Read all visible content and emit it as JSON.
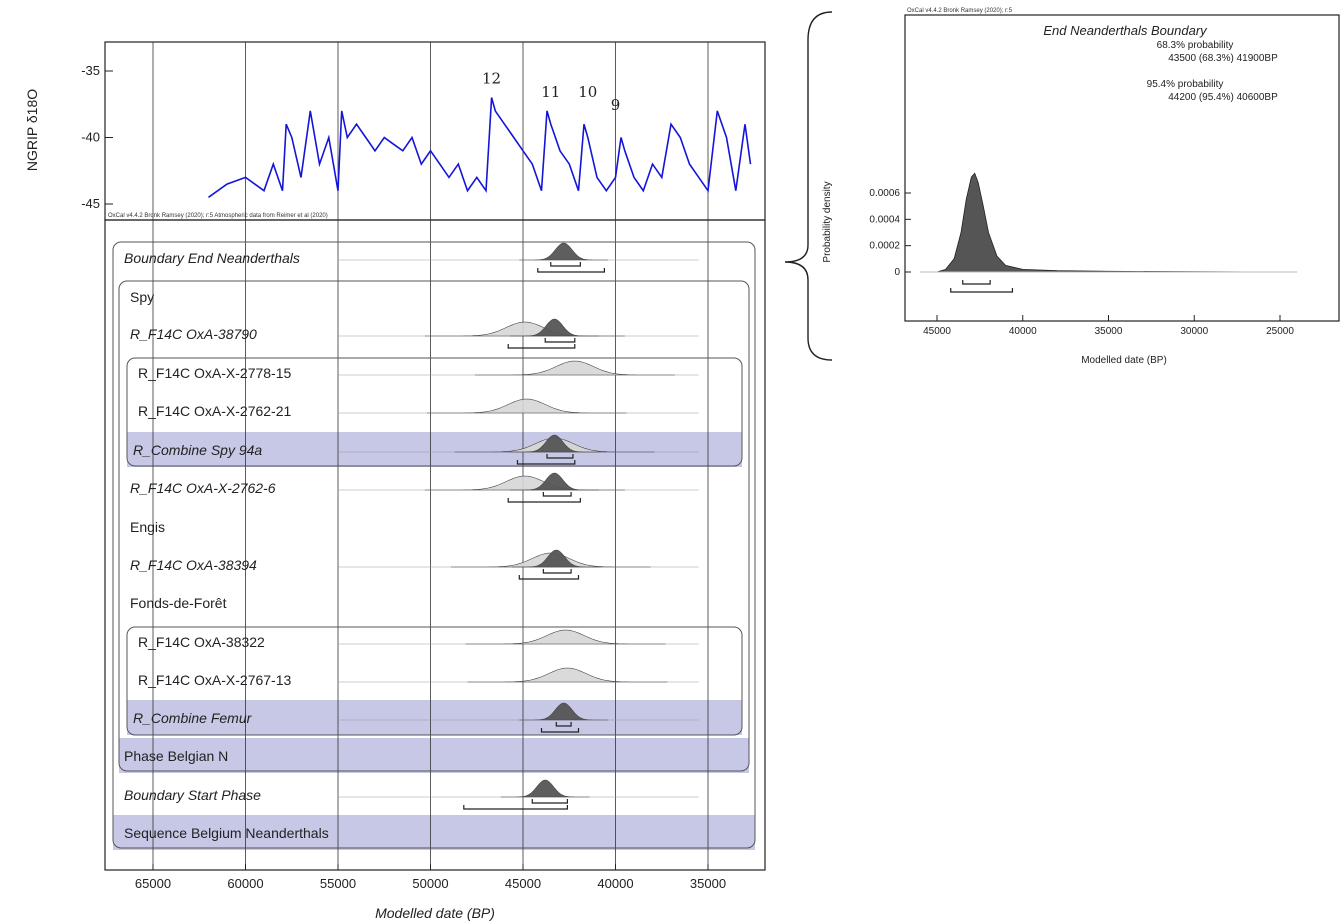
{
  "main_chart": {
    "y_axis_label": "NGRIP δ18O",
    "x_axis_label": "Modelled date (BP)",
    "credit": "OxCal v4.4.2 Bronk Ramsey (2020); r:5 Atmospheric data from Reimer et al (2020)",
    "x_ticks": [
      "65000",
      "60000",
      "55000",
      "50000",
      "45000",
      "40000",
      "35000"
    ],
    "y_ticks": [
      "-35",
      "-40",
      "-45"
    ],
    "peak_labels": [
      "12",
      "11",
      "10",
      "9"
    ]
  },
  "rows": [
    {
      "label": "Boundary End Neanderthals",
      "italic": true,
      "shaded": false
    },
    {
      "label": "Spy",
      "italic": false,
      "shaded": false
    },
    {
      "label": "R_F14C OxA-38790",
      "italic": true,
      "shaded": false
    },
    {
      "label": "R_F14C OxA-X-2778-15",
      "italic": false,
      "shaded": false
    },
    {
      "label": "R_F14C OxA-X-2762-21",
      "italic": false,
      "shaded": false
    },
    {
      "label": "R_Combine Spy 94a",
      "italic": true,
      "shaded": true
    },
    {
      "label": "R_F14C OxA-X-2762-6",
      "italic": true,
      "shaded": false
    },
    {
      "label": "Engis",
      "italic": false,
      "shaded": false
    },
    {
      "label": "R_F14C OxA-38394",
      "italic": true,
      "shaded": false
    },
    {
      "label": "Fonds-de-Forêt",
      "italic": false,
      "shaded": false
    },
    {
      "label": "R_F14C OxA-38322",
      "italic": false,
      "shaded": false
    },
    {
      "label": "R_F14C OxA-X-2767-13",
      "italic": false,
      "shaded": false
    },
    {
      "label": "R_Combine Femur",
      "italic": true,
      "shaded": true
    },
    {
      "label": "Phase Belgian N",
      "italic": false,
      "shaded": true
    },
    {
      "label": "Boundary Start Phase",
      "italic": true,
      "shaded": false
    },
    {
      "label": "Sequence Belgium Neanderthals",
      "italic": false,
      "shaded": true
    }
  ],
  "inset": {
    "credit": "OxCal v4.4.2 Bronk Ramsey (2020); r:5",
    "title": "End Neanderthals Boundary",
    "lines": [
      "68.3% probability",
      "43500 (68.3%) 41900BP",
      "95.4% probability",
      "44200 (95.4%) 40600BP"
    ],
    "y_axis_label": "Probability density",
    "x_axis_label": "Modelled date (BP)",
    "y_ticks": [
      "0.0006",
      "0.0004",
      "0.0002",
      "0"
    ],
    "x_ticks": [
      "45000",
      "40000",
      "35000",
      "30000",
      "25000"
    ]
  },
  "chart_data": [
    {
      "type": "area",
      "title": "",
      "xlabel": "Modelled date (BP)",
      "ylabel": "NGRIP δ18O",
      "x_reversed": true,
      "xlim": [
        67500,
        32500
      ],
      "ylim": [
        -46,
        -34
      ],
      "grid": true,
      "series": [
        {
          "name": "NGRIP δ18O",
          "x": [
            62000,
            61000,
            60000,
            59000,
            58500,
            58000,
            57800,
            57500,
            57000,
            56500,
            56000,
            55500,
            55000,
            54800,
            54500,
            54000,
            53500,
            53000,
            52500,
            52000,
            51500,
            51000,
            50500,
            50000,
            49500,
            49000,
            48500,
            48000,
            47500,
            47000,
            46700,
            46500,
            46000,
            45500,
            45000,
            44500,
            44000,
            43700,
            43500,
            43000,
            42500,
            42000,
            41700,
            41500,
            41000,
            40500,
            40000,
            39700,
            39500,
            39000,
            38500,
            38000,
            37500,
            37000,
            36500,
            36000,
            35500,
            35000,
            34500,
            34000,
            33500,
            33000,
            32700
          ],
          "y": [
            -44.5,
            -43.5,
            -43,
            -44,
            -42,
            -44,
            -39,
            -40,
            -43,
            -38,
            -42,
            -40,
            -44,
            -38,
            -40,
            -39,
            -40,
            -41,
            -40,
            -40.5,
            -41,
            -40,
            -42,
            -41,
            -42,
            -43,
            -42,
            -44,
            -43,
            -44,
            -37,
            -38,
            -39,
            -40,
            -41,
            -42,
            -44,
            -38,
            -39,
            -41,
            -42,
            -44,
            -39,
            -40,
            -43,
            -44,
            -43,
            -40,
            -41,
            -43,
            -44,
            -42,
            -43,
            -39,
            -40,
            -42,
            -43,
            -44,
            -38,
            -40,
            -44,
            -39,
            -42
          ]
        }
      ],
      "annotations": [
        {
          "text": "12",
          "x": 46700,
          "y": -37
        },
        {
          "text": "11",
          "x": 43500,
          "y": -38
        },
        {
          "text": "10",
          "x": 41500,
          "y": -38
        },
        {
          "text": "9",
          "x": 40000,
          "y": -39
        }
      ]
    },
    {
      "type": "scatter",
      "title": "",
      "xlabel": "Modelled date (BP)",
      "ylabel": "",
      "x_reversed": true,
      "xlim": [
        67500,
        32500
      ],
      "categories": [
        "Boundary End Neanderthals",
        "R_F14C OxA-38790",
        "R_F14C OxA-X-2778-15",
        "R_F14C OxA-X-2762-21",
        "R_Combine Spy 94a",
        "R_F14C OxA-X-2762-6",
        "R_F14C OxA-38394",
        "R_F14C OxA-38322",
        "R_F14C OxA-X-2767-13",
        "R_Combine Femur",
        "Boundary Start Phase"
      ],
      "series": [
        {
          "name": "posterior",
          "peak": [
            42800,
            43300,
            null,
            null,
            43300,
            43300,
            43200,
            null,
            null,
            42800,
            43800
          ],
          "range68": [
            [
              43500,
              41900
            ],
            [
              43800,
              42200
            ],
            null,
            null,
            [
              43700,
              42300
            ],
            [
              43900,
              42400
            ],
            [
              43900,
              42400
            ],
            null,
            null,
            [
              43200,
              42400
            ],
            [
              44500,
              42600
            ]
          ],
          "range95": [
            [
              44200,
              40600
            ],
            [
              45800,
              42200
            ],
            null,
            null,
            [
              45300,
              42200
            ],
            [
              45800,
              41900
            ],
            [
              45200,
              42000
            ],
            null,
            null,
            [
              44000,
              42000
            ],
            [
              48200,
              42600
            ]
          ]
        },
        {
          "name": "prior",
          "peak": [
            null,
            44900,
            42200,
            44800,
            43300,
            44900,
            43500,
            42700,
            42600,
            null,
            null
          ]
        }
      ]
    },
    {
      "type": "area",
      "title": "End Neanderthals Boundary",
      "xlabel": "Modelled date (BP)",
      "ylabel": "Probability density",
      "x_reversed": true,
      "xlim": [
        47000,
        22000
      ],
      "ylim": [
        0,
        0.0008
      ],
      "series": [
        {
          "name": "End Neanderthals Boundary",
          "x": [
            45000,
            44500,
            44000,
            43600,
            43300,
            43000,
            42800,
            42600,
            42300,
            42000,
            41500,
            41000,
            40000,
            38000,
            35000,
            30000,
            25000
          ],
          "y": [
            0,
            2e-05,
            0.0001,
            0.0003,
            0.00055,
            0.00072,
            0.00075,
            0.00068,
            0.0005,
            0.0003,
            0.00012,
            5e-05,
            2e-05,
            1e-05,
            5e-06,
            2e-06,
            0
          ]
        }
      ],
      "ranges": {
        "68.3": [
          43500,
          41900
        ],
        "95.4": [
          44200,
          40600
        ]
      }
    }
  ]
}
